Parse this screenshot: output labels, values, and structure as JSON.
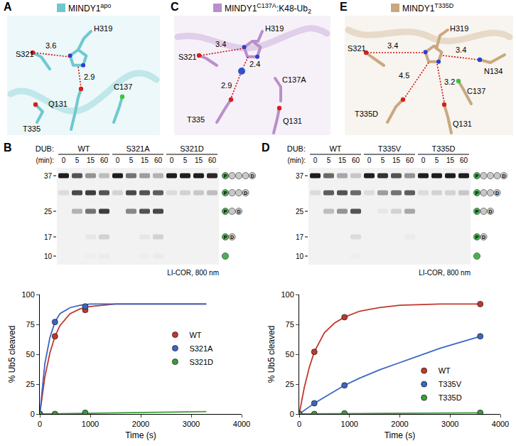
{
  "structures": [
    {
      "panel": "A",
      "title": {
        "main": "MINDY1",
        "sup": "apo"
      },
      "color": "#6fc8cf",
      "residues": [
        "S321",
        "H319",
        "Q131",
        "C137",
        "T335"
      ],
      "distances": [
        "3.6",
        "2.9"
      ]
    },
    {
      "panel": "C",
      "title": {
        "main": "MINDY1",
        "sup": "C137A",
        "rest": ":K48-Ub",
        "sub": "2"
      },
      "color": "#b88fcc",
      "residues": [
        "S321",
        "H319",
        "C137A",
        "Q131",
        "T335"
      ],
      "distances": [
        "3.4",
        "2.4",
        "2.9"
      ]
    },
    {
      "panel": "E",
      "title": {
        "main": "MINDY1",
        "sup": "T335D"
      },
      "color": "#c9a880",
      "residues": [
        "S321",
        "H319",
        "N134",
        "C137",
        "T335D",
        "Q131"
      ],
      "distances": [
        "3.4",
        "3.4",
        "4.5",
        "3.2"
      ]
    }
  ],
  "gels": [
    {
      "panel": "B",
      "dub_label": "DUB:",
      "time_label": "(min):",
      "groups": [
        "WT",
        "S321A",
        "S321D"
      ],
      "times": [
        0,
        5,
        15,
        60
      ],
      "mw": [
        37,
        25,
        17,
        10
      ],
      "detector": "LI-COR, 800 nm",
      "bands": [
        [
          1,
          0.75,
          0.45,
          0.25,
          1,
          0.6,
          0.4,
          0.3,
          1,
          1,
          1,
          0.95
        ],
        [
          0.1,
          0.8,
          0.85,
          0.75,
          0.15,
          0.8,
          0.75,
          0.7,
          0.1,
          0.15,
          0.2,
          0.25
        ],
        [
          0,
          0.3,
          0.6,
          0.85,
          0,
          0.5,
          0.75,
          0.8,
          0,
          0,
          0,
          0
        ],
        [
          0,
          0,
          0.05,
          0.15,
          0,
          0,
          0.05,
          0.15,
          0,
          0,
          0,
          0
        ],
        [
          0,
          0,
          0.02,
          0.03,
          0,
          0,
          0.02,
          0.03,
          0,
          0,
          0,
          0
        ]
      ]
    },
    {
      "panel": "D",
      "dub_label": "DUB:",
      "time_label": "(min):",
      "groups": [
        "WT",
        "T335V",
        "T335D"
      ],
      "times": [
        0,
        5,
        15,
        60
      ],
      "mw": [
        37,
        25,
        17,
        10
      ],
      "detector": "LI-COR, 800 nm",
      "bands": [
        [
          1,
          0.65,
          0.35,
          0.2,
          1,
          0.9,
          0.75,
          0.45,
          1,
          1,
          1,
          1
        ],
        [
          0.1,
          0.7,
          0.75,
          0.65,
          0.1,
          0.4,
          0.6,
          0.7,
          0.1,
          0.15,
          0.15,
          0.2
        ],
        [
          0,
          0.25,
          0.45,
          0.75,
          0,
          0.05,
          0.15,
          0.35,
          0,
          0,
          0,
          0
        ],
        [
          0,
          0,
          0,
          0.1,
          0,
          0,
          0,
          0.03,
          0,
          0,
          0,
          0
        ],
        [
          0,
          0,
          0,
          0.02,
          0,
          0,
          0,
          0,
          0,
          0,
          0,
          0
        ]
      ]
    }
  ],
  "ladder": [
    {
      "first": "P",
      "middle": 3,
      "last": "D"
    },
    {
      "first": "P",
      "middle": 2,
      "last": "D"
    },
    {
      "first": "P",
      "middle": 1,
      "last": "D"
    },
    {
      "first": "P",
      "middle": 0,
      "last": "D"
    },
    {
      "middle": 0
    }
  ],
  "chart_data": [
    {
      "type": "scatter",
      "panel": "B",
      "xlabel": "Time (s)",
      "ylabel": "% Ub5 cleaved",
      "xlim": [
        0,
        4000
      ],
      "ylim": [
        0,
        100
      ],
      "xticks": [
        0,
        1000,
        2000,
        3000,
        4000
      ],
      "yticks": [
        0,
        25,
        50,
        75,
        100
      ],
      "grid": false,
      "legend": "right",
      "series": [
        {
          "name": "WT",
          "color": "#c0392b",
          "x": [
            0,
            300,
            900
          ],
          "values": [
            0,
            65,
            87
          ],
          "fit_x": [
            0,
            100,
            200,
            300,
            400,
            600,
            800,
            1000,
            1500,
            2000,
            3300
          ],
          "fit_values": [
            0,
            31,
            51,
            65,
            74,
            84,
            88,
            90,
            92,
            92,
            92
          ]
        },
        {
          "name": "S321A",
          "color": "#3b66c4",
          "x": [
            0,
            300,
            900
          ],
          "values": [
            0,
            77,
            90
          ],
          "fit_x": [
            0,
            100,
            200,
            300,
            400,
            600,
            800,
            1000,
            1500,
            2000,
            3300
          ],
          "fit_values": [
            0,
            42,
            64,
            77,
            84,
            89,
            91,
            92,
            92,
            92,
            92
          ]
        },
        {
          "name": "S321D",
          "color": "#3a9e3a",
          "x": [
            0,
            300,
            900
          ],
          "values": [
            0,
            0,
            1
          ],
          "fit_x": [
            0,
            100,
            200,
            300,
            400,
            600,
            800,
            1000,
            1500,
            2000,
            3300
          ],
          "fit_values": [
            0,
            0,
            0.1,
            0.2,
            0.2,
            0.4,
            0.5,
            0.6,
            0.9,
            1.2,
            2
          ]
        }
      ]
    },
    {
      "type": "scatter",
      "panel": "D",
      "xlabel": "Time (s)",
      "ylabel": "% Ub5 cleaved",
      "xlim": [
        0,
        4000
      ],
      "ylim": [
        0,
        100
      ],
      "xticks": [
        0,
        1000,
        2000,
        3000,
        4000
      ],
      "yticks": [
        0,
        25,
        50,
        75,
        100
      ],
      "grid": false,
      "legend": "lower right",
      "series": [
        {
          "name": "WT",
          "color": "#c0392b",
          "x": [
            0,
            300,
            900,
            3600
          ],
          "values": [
            0,
            52,
            81,
            92
          ],
          "fit_x": [
            0,
            100,
            200,
            300,
            500,
            700,
            900,
            1200,
            1600,
            2000,
            2800,
            3600
          ],
          "fit_values": [
            0,
            22,
            39,
            52,
            68,
            76,
            81,
            86,
            89,
            91,
            92,
            92
          ]
        },
        {
          "name": "T335V",
          "color": "#3b66c4",
          "x": [
            0,
            300,
            900,
            3600
          ],
          "values": [
            0,
            9,
            24,
            65
          ],
          "fit_x": [
            0,
            100,
            200,
            300,
            500,
            700,
            900,
            1200,
            1600,
            2000,
            2800,
            3600
          ],
          "fit_values": [
            0,
            3,
            6,
            9,
            14,
            19,
            24,
            30,
            37,
            43,
            55,
            65
          ]
        },
        {
          "name": "T335D",
          "color": "#3a9e3a",
          "x": [
            0,
            300,
            900,
            3600
          ],
          "values": [
            0,
            0,
            0.5,
            1
          ],
          "fit_x": [
            0,
            100,
            200,
            300,
            500,
            700,
            900,
            1200,
            1600,
            2000,
            2800,
            3600
          ],
          "fit_values": [
            0,
            0,
            0,
            0,
            0.1,
            0.2,
            0.3,
            0.4,
            0.5,
            0.6,
            0.8,
            1
          ]
        }
      ]
    }
  ]
}
